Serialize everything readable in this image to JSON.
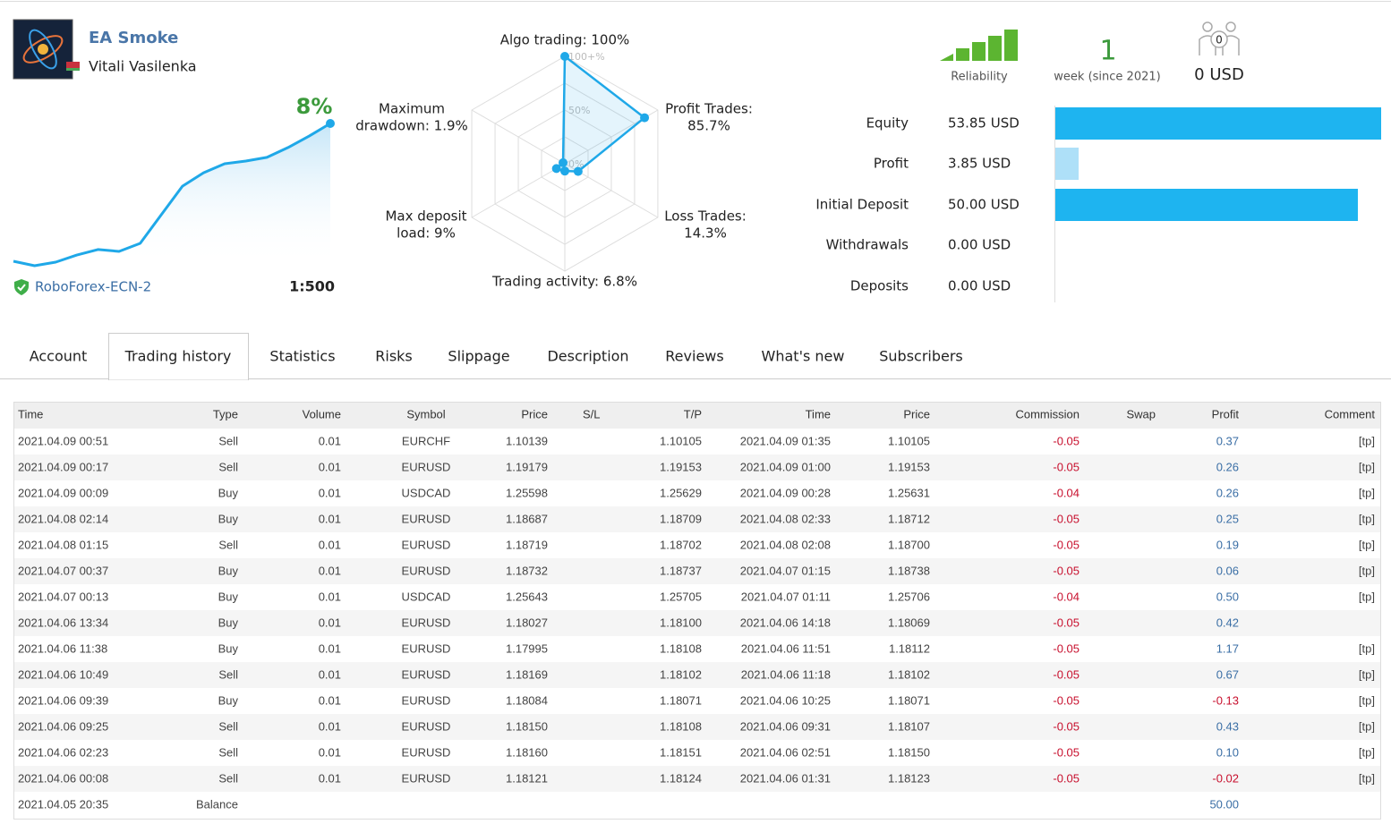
{
  "header": {
    "name": "EA Smoke",
    "author": "Vitali Vasilenka",
    "growth": "8%",
    "broker": "RoboForex-ECN-2",
    "leverage": "1:500"
  },
  "growth_curve": [
    0,
    -0.26,
    -0.05,
    0.36,
    0.68,
    0.57,
    1.04,
    2.7,
    4.36,
    5.14,
    5.66,
    5.82,
    6.03,
    6.6,
    7.27,
    8
  ],
  "radar": {
    "axes": [
      {
        "lines": [
          "Algo trading: 100%"
        ],
        "value": 100
      },
      {
        "lines": [
          "Profit Trades:",
          "85.7%"
        ],
        "value": 85.7
      },
      {
        "lines": [
          "Loss Trades:",
          "14.3%"
        ],
        "value": 14.3
      },
      {
        "lines": [
          "Trading activity: 6.8%"
        ],
        "value": 6.8
      },
      {
        "lines": [
          "Max deposit",
          "load: 9%"
        ],
        "value": 9
      },
      {
        "lines": [
          "Maximum",
          "drawdown: 1.9%"
        ],
        "value": 1.9
      }
    ],
    "ticks": [
      {
        "value": 100,
        "label": "100+%"
      },
      {
        "value": 50,
        "label": "50%"
      },
      {
        "value": 0,
        "label": "0%"
      }
    ]
  },
  "stats": {
    "reliability_label": "Reliability",
    "weeks": "1",
    "weeks_label": "week (since 2021)",
    "subscribers": "0",
    "subscribers_funds": "0 USD"
  },
  "balance": [
    {
      "label": "Equity",
      "value": 53.85,
      "value_label": "53.85 USD",
      "color": "#1eb4f0"
    },
    {
      "label": "Profit",
      "value": 3.85,
      "value_label": "3.85 USD",
      "color": "#aee0f8"
    },
    {
      "label": "Initial Deposit",
      "value": 50,
      "value_label": "50.00 USD",
      "color": "#1eb4f0"
    },
    {
      "label": "Withdrawals",
      "value": 0,
      "value_label": "0.00 USD",
      "color": "#1eb4f0"
    },
    {
      "label": "Deposits",
      "value": 0,
      "value_label": "0.00 USD",
      "color": "#1eb4f0"
    }
  ],
  "tabs": {
    "items": [
      "Account",
      "Trading history",
      "Statistics",
      "Risks",
      "Slippage",
      "Description",
      "Reviews",
      "What's new",
      "Subscribers"
    ],
    "active": 1
  },
  "table": {
    "columns": [
      "Time",
      "Type",
      "Volume",
      "Symbol",
      "Price",
      "S/L",
      "T/P",
      "Time",
      "Price",
      "Commission",
      "Swap",
      "Profit",
      "Comment"
    ],
    "rows": [
      [
        "2021.04.09 00:51",
        "Sell",
        "0.01",
        "EURCHF",
        "1.10139",
        null,
        "1.10105",
        "2021.04.09 01:35",
        "1.10105",
        "-0.05",
        null,
        "0.37",
        "[tp]"
      ],
      [
        "2021.04.09 00:17",
        "Sell",
        "0.01",
        "EURUSD",
        "1.19179",
        null,
        "1.19153",
        "2021.04.09 01:00",
        "1.19153",
        "-0.05",
        null,
        "0.26",
        "[tp]"
      ],
      [
        "2021.04.09 00:09",
        "Buy",
        "0.01",
        "USDCAD",
        "1.25598",
        null,
        "1.25629",
        "2021.04.09 00:28",
        "1.25631",
        "-0.04",
        null,
        "0.26",
        "[tp]"
      ],
      [
        "2021.04.08 02:14",
        "Buy",
        "0.01",
        "EURUSD",
        "1.18687",
        null,
        "1.18709",
        "2021.04.08 02:33",
        "1.18712",
        "-0.05",
        null,
        "0.25",
        "[tp]"
      ],
      [
        "2021.04.08 01:15",
        "Sell",
        "0.01",
        "EURUSD",
        "1.18719",
        null,
        "1.18702",
        "2021.04.08 02:08",
        "1.18700",
        "-0.05",
        null,
        "0.19",
        "[tp]"
      ],
      [
        "2021.04.07 00:37",
        "Buy",
        "0.01",
        "EURUSD",
        "1.18732",
        null,
        "1.18737",
        "2021.04.07 01:15",
        "1.18738",
        "-0.05",
        null,
        "0.06",
        "[tp]"
      ],
      [
        "2021.04.07 00:13",
        "Buy",
        "0.01",
        "USDCAD",
        "1.25643",
        null,
        "1.25705",
        "2021.04.07 01:11",
        "1.25706",
        "-0.04",
        null,
        "0.50",
        "[tp]"
      ],
      [
        "2021.04.06 13:34",
        "Buy",
        "0.01",
        "EURUSD",
        "1.18027",
        null,
        "1.18100",
        "2021.04.06 14:18",
        "1.18069",
        "-0.05",
        null,
        "0.42",
        null
      ],
      [
        "2021.04.06 11:38",
        "Buy",
        "0.01",
        "EURUSD",
        "1.17995",
        null,
        "1.18108",
        "2021.04.06 11:51",
        "1.18112",
        "-0.05",
        null,
        "1.17",
        "[tp]"
      ],
      [
        "2021.04.06 10:49",
        "Sell",
        "0.01",
        "EURUSD",
        "1.18169",
        null,
        "1.18102",
        "2021.04.06 11:18",
        "1.18102",
        "-0.05",
        null,
        "0.67",
        "[tp]"
      ],
      [
        "2021.04.06 09:39",
        "Buy",
        "0.01",
        "EURUSD",
        "1.18084",
        null,
        "1.18071",
        "2021.04.06 10:25",
        "1.18071",
        "-0.05",
        null,
        "-0.13",
        "[tp]"
      ],
      [
        "2021.04.06 09:25",
        "Sell",
        "0.01",
        "EURUSD",
        "1.18150",
        null,
        "1.18108",
        "2021.04.06 09:31",
        "1.18107",
        "-0.05",
        null,
        "0.43",
        "[tp]"
      ],
      [
        "2021.04.06 02:23",
        "Sell",
        "0.01",
        "EURUSD",
        "1.18160",
        null,
        "1.18151",
        "2021.04.06 02:51",
        "1.18150",
        "-0.05",
        null,
        "0.10",
        "[tp]"
      ],
      [
        "2021.04.06 00:08",
        "Sell",
        "0.01",
        "EURUSD",
        "1.18121",
        null,
        "1.18124",
        "2021.04.06 01:31",
        "1.18123",
        "-0.05",
        null,
        "-0.02",
        "[tp]"
      ],
      [
        "2021.04.05 20:35",
        "Balance",
        null,
        null,
        null,
        null,
        null,
        null,
        null,
        null,
        null,
        "50.00",
        null
      ]
    ]
  }
}
